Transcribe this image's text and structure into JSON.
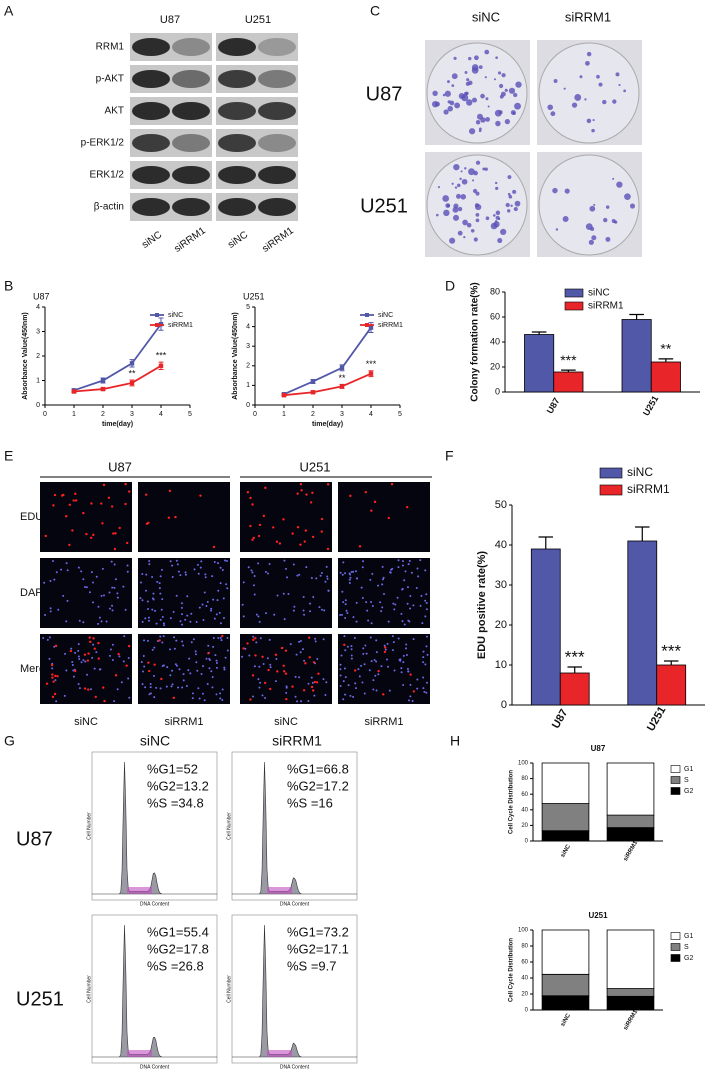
{
  "panel_labels": [
    "A",
    "B",
    "C",
    "D",
    "E",
    "F",
    "G",
    "H"
  ],
  "western_blot": {
    "cell_lines": [
      "U87",
      "U251"
    ],
    "proteins": [
      "RRM1",
      "p-AKT",
      "AKT",
      "p-ERK1/2",
      "ERK1/2",
      "β-actin"
    ],
    "lanes": [
      "siNC",
      "siRRM1",
      "siNC",
      "siRRM1"
    ]
  },
  "colony_assay": {
    "conditions": [
      "siNC",
      "siRRM1"
    ],
    "cell_lines": [
      "U87",
      "U251"
    ]
  },
  "edu_assay": {
    "cell_lines": [
      "U87",
      "U251"
    ],
    "stains": [
      "EDU",
      "DAPI",
      "Merge"
    ],
    "lanes": [
      "siNC",
      "siRRM1",
      "siNC",
      "siRRM1"
    ]
  },
  "flow_cytometry": {
    "conditions": [
      "siNC",
      "siRRM1"
    ],
    "cell_lines": [
      "U87",
      "U251"
    ],
    "y_label": "Cell Number",
    "x_label": "DNA Content",
    "stats": [
      [
        "%G1=52",
        "%G2=13.2",
        "%S =34.8"
      ],
      [
        "%G1=66.8",
        "%G2=17.2",
        "%S =16"
      ],
      [
        "%G1=55.4",
        "%G2=17.8",
        "%S =26.8"
      ],
      [
        "%G1=73.2",
        "%G2=17.1",
        "%S =9.7"
      ]
    ]
  },
  "chart_data": [
    {
      "type": "line",
      "title": "U87",
      "x_label": "time(day)",
      "y_label": "Absorbance Value(450nm)",
      "xlim": [
        0,
        5
      ],
      "xticks": [
        0,
        1,
        2,
        3,
        4,
        5
      ],
      "ylim": [
        0,
        4
      ],
      "yticks": [
        0,
        1,
        2,
        3,
        4
      ],
      "series": [
        {
          "name": "siNC",
          "color": "#5258a8",
          "x": [
            1,
            2,
            3,
            4
          ],
          "values": [
            0.6,
            1.0,
            1.7,
            3.3
          ],
          "errors": [
            0.05,
            0.1,
            0.15,
            0.25
          ]
        },
        {
          "name": "siRRM1",
          "color": "#e8262a",
          "x": [
            1,
            2,
            3,
            4
          ],
          "values": [
            0.55,
            0.65,
            0.9,
            1.6
          ],
          "errors": [
            0.05,
            0.05,
            0.12,
            0.15
          ]
        }
      ],
      "annotations": [
        {
          "text": "**",
          "x": 3
        },
        {
          "text": "***",
          "x": 4
        }
      ]
    },
    {
      "type": "line",
      "title": "U251",
      "x_label": "time(day)",
      "y_label": "Absorbance Value(450nm)",
      "xlim": [
        0,
        5
      ],
      "xticks": [
        0,
        1,
        2,
        3,
        4,
        5
      ],
      "ylim": [
        0,
        5
      ],
      "yticks": [
        0,
        1,
        2,
        3,
        4,
        5
      ],
      "series": [
        {
          "name": "siNC",
          "color": "#5258a8",
          "x": [
            1,
            2,
            3,
            4
          ],
          "values": [
            0.55,
            1.2,
            1.9,
            3.95
          ],
          "errors": [
            0.05,
            0.1,
            0.15,
            0.25
          ]
        },
        {
          "name": "siRRM1",
          "color": "#e8262a",
          "x": [
            1,
            2,
            3,
            4
          ],
          "values": [
            0.5,
            0.65,
            0.95,
            1.6
          ],
          "errors": [
            0.05,
            0.05,
            0.1,
            0.15
          ]
        }
      ],
      "annotations": [
        {
          "text": "**",
          "x": 3
        },
        {
          "text": "***",
          "x": 4
        }
      ]
    },
    {
      "type": "bar",
      "y_label": "Colony formation rate(%)",
      "categories": [
        "U87",
        "U251"
      ],
      "ylim": [
        0,
        80
      ],
      "yticks": [
        0,
        20,
        40,
        60,
        80
      ],
      "series": [
        {
          "name": "siNC",
          "color": "#5258a8",
          "values": [
            46,
            58
          ],
          "errors": [
            2,
            4
          ]
        },
        {
          "name": "siRRM1",
          "color": "#e8262a",
          "values": [
            16,
            24
          ],
          "errors": [
            1.5,
            2.5
          ],
          "annotations": [
            "***",
            "**"
          ]
        }
      ]
    },
    {
      "type": "bar",
      "y_label": "EDU positive rate(%)",
      "categories": [
        "U87",
        "U251"
      ],
      "ylim": [
        0,
        50
      ],
      "yticks": [
        0,
        10,
        20,
        30,
        40,
        50
      ],
      "series": [
        {
          "name": "siNC",
          "color": "#5258a8",
          "values": [
            39,
            41
          ],
          "errors": [
            3,
            3.5
          ]
        },
        {
          "name": "siRRM1",
          "color": "#e8262a",
          "values": [
            8,
            10
          ],
          "errors": [
            1.5,
            1
          ]
        }
      ],
      "annotations_series": 1,
      "annotations": [
        "***",
        "***"
      ]
    },
    {
      "type": "stacked_bar",
      "title": "U87",
      "y_label": "Cell Cycle Distribution",
      "categories": [
        "siNC",
        "siRRM1"
      ],
      "ylim": [
        0,
        100
      ],
      "yticks": [
        0,
        20,
        40,
        60,
        80,
        100
      ],
      "series": [
        {
          "name": "G2",
          "color": "#000000",
          "values": [
            13.2,
            17.2
          ]
        },
        {
          "name": "S",
          "color": "#808080",
          "values": [
            34.8,
            16
          ]
        },
        {
          "name": "G1",
          "color": "#ffffff",
          "values": [
            52,
            66.8
          ]
        }
      ]
    },
    {
      "type": "stacked_bar",
      "title": "U251",
      "y_label": "Cell Cycle Distribution",
      "categories": [
        "siNC",
        "siRRM1"
      ],
      "ylim": [
        0,
        100
      ],
      "yticks": [
        0,
        20,
        40,
        60,
        80,
        100
      ],
      "series": [
        {
          "name": "G2",
          "color": "#000000",
          "values": [
            17.8,
            17.1
          ]
        },
        {
          "name": "S",
          "color": "#808080",
          "values": [
            26.8,
            9.7
          ]
        },
        {
          "name": "G1",
          "color": "#ffffff",
          "values": [
            55.4,
            73.2
          ]
        }
      ]
    }
  ]
}
